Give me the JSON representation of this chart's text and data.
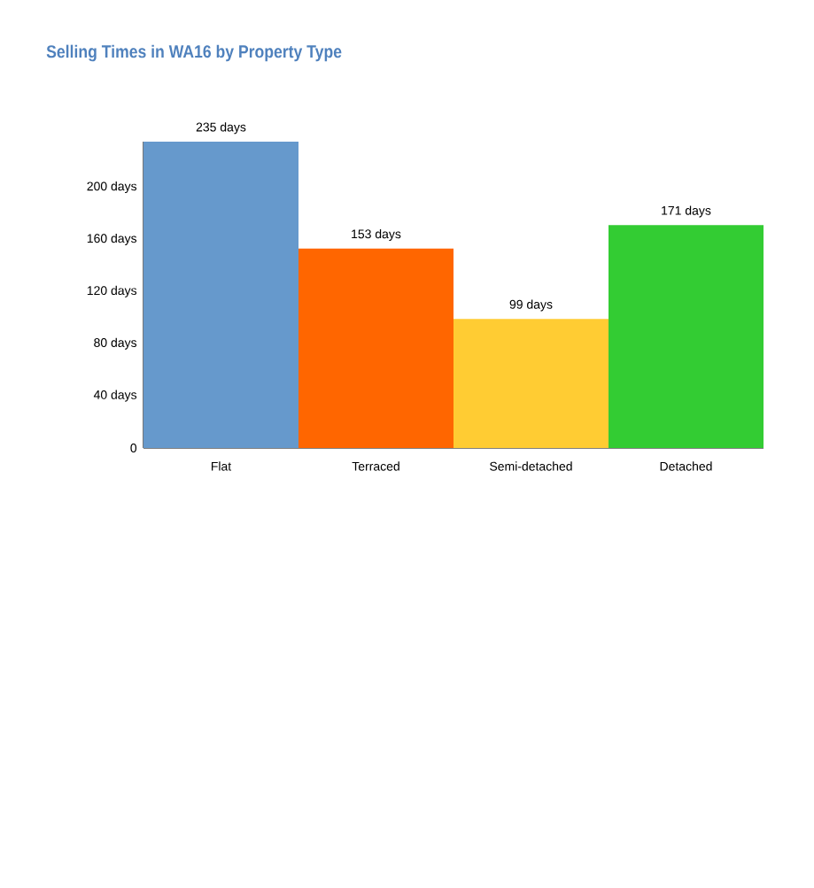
{
  "chart_data": {
    "type": "bar",
    "title": "Selling Times in WA16 by Property Type",
    "categories": [
      "Flat",
      "Terraced",
      "Semi-detached",
      "Detached"
    ],
    "values": [
      235,
      153,
      99,
      171
    ],
    "colors": [
      "#6699cc",
      "#ff6600",
      "#ffcc33",
      "#33cc33"
    ],
    "value_labels": [
      "235 days",
      "153 days",
      "99 days",
      "171 days"
    ],
    "ylim": [
      0,
      235
    ],
    "yticks": [
      {
        "value": 0,
        "label": "0"
      },
      {
        "value": 40,
        "label": "40 days"
      },
      {
        "value": 80,
        "label": "80 days"
      },
      {
        "value": 120,
        "label": "120 days"
      },
      {
        "value": 160,
        "label": "160 days"
      },
      {
        "value": 200,
        "label": "200 days"
      }
    ],
    "grid": false
  }
}
